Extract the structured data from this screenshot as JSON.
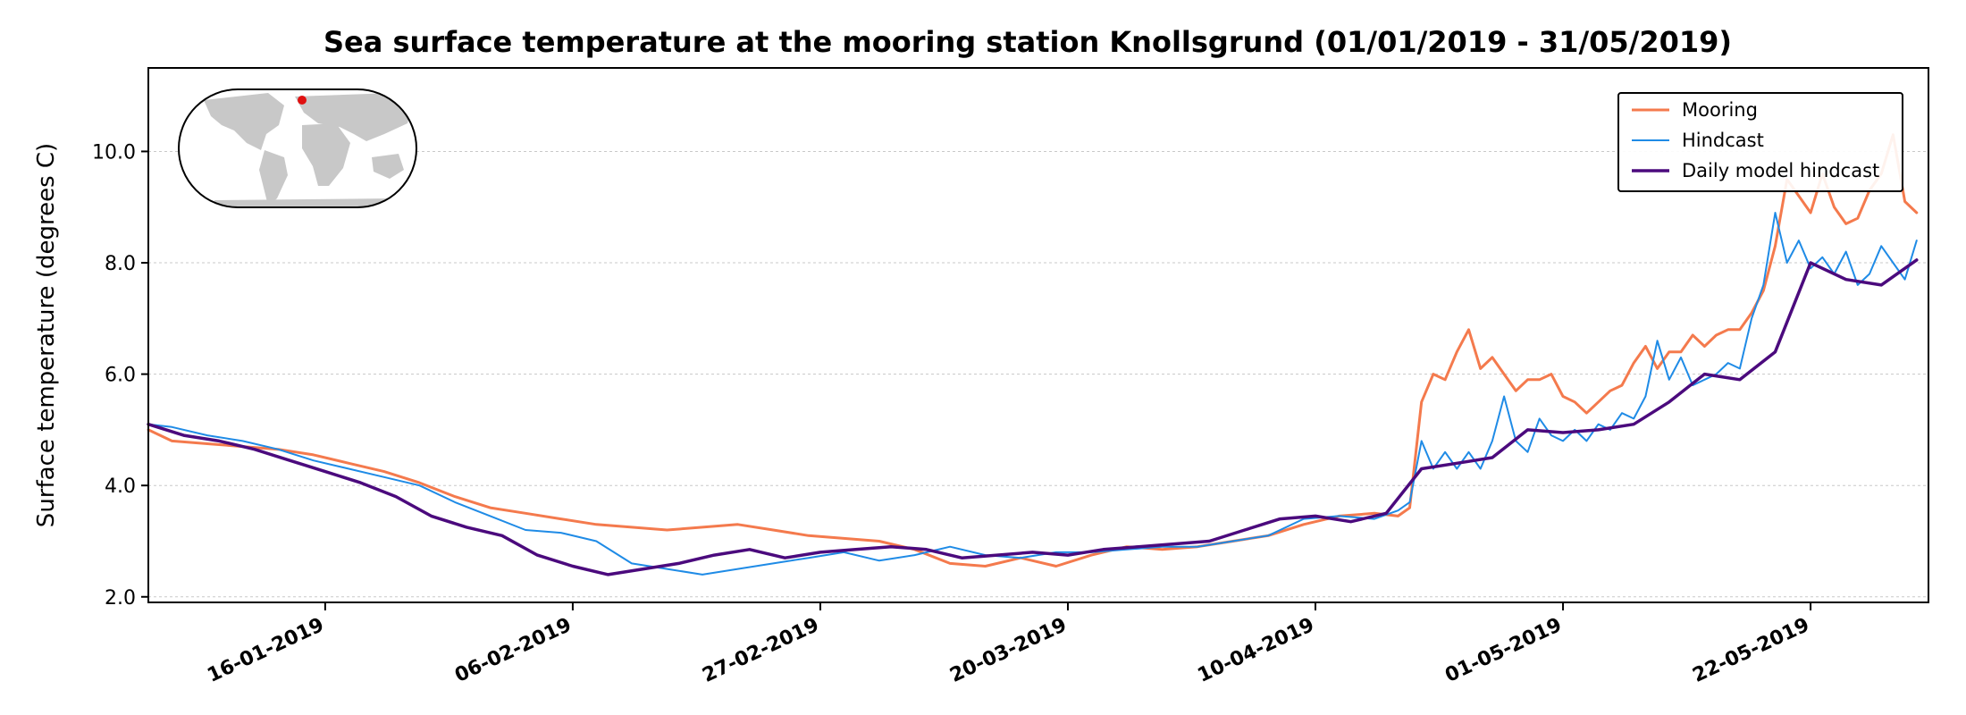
{
  "chart_data": {
    "type": "line",
    "title": "Sea surface temperature at the mooring station Knollsgrund (01/01/2019 - 31/05/2019)",
    "ylabel": "Surface temperature (degrees C)",
    "xlabel": "",
    "xlim": [
      "2019-01-01",
      "2019-06-01"
    ],
    "ylim": [
      1.9,
      11.5
    ],
    "yticks": [
      2.0,
      4.0,
      6.0,
      8.0,
      10.0
    ],
    "ytick_labels": [
      "2.0",
      "4.0",
      "6.0",
      "8.0",
      "10.0"
    ],
    "xticks": [
      "2019-01-16",
      "2019-02-06",
      "2019-02-27",
      "2019-03-20",
      "2019-04-10",
      "2019-05-01",
      "2019-05-22"
    ],
    "xtick_labels": [
      "16-01-2019",
      "06-02-2019",
      "27-02-2019",
      "20-03-2019",
      "10-04-2019",
      "01-05-2019",
      "22-05-2019"
    ],
    "grid": "horizontal dotted",
    "legend_position": "top-right",
    "inset": {
      "type": "world-map",
      "marker_color": "#e01010",
      "marker": "Baltic Sea"
    },
    "series": [
      {
        "name": "Mooring",
        "color": "#f47a4d",
        "width": 3,
        "x": [
          "2019-01-01",
          "2019-01-03",
          "2019-01-06",
          "2019-01-09",
          "2019-01-12",
          "2019-01-15",
          "2019-01-18",
          "2019-01-21",
          "2019-01-24",
          "2019-01-27",
          "2019-01-30",
          "2019-02-02",
          "2019-02-05",
          "2019-02-08",
          "2019-02-11",
          "2019-02-14",
          "2019-02-17",
          "2019-02-20",
          "2019-02-23",
          "2019-02-26",
          "2019-03-01",
          "2019-03-04",
          "2019-03-07",
          "2019-03-10",
          "2019-03-13",
          "2019-03-16",
          "2019-03-19",
          "2019-03-22",
          "2019-03-25",
          "2019-03-28",
          "2019-03-31",
          "2019-04-03",
          "2019-04-06",
          "2019-04-09",
          "2019-04-12",
          "2019-04-15",
          "2019-04-17",
          "2019-04-18",
          "2019-04-19",
          "2019-04-20",
          "2019-04-21",
          "2019-04-22",
          "2019-04-23",
          "2019-04-24",
          "2019-04-25",
          "2019-04-26",
          "2019-04-27",
          "2019-04-28",
          "2019-04-29",
          "2019-04-30",
          "2019-05-01",
          "2019-05-02",
          "2019-05-03",
          "2019-05-04",
          "2019-05-05",
          "2019-05-06",
          "2019-05-07",
          "2019-05-08",
          "2019-05-09",
          "2019-05-10",
          "2019-05-11",
          "2019-05-12",
          "2019-05-13",
          "2019-05-14",
          "2019-05-15",
          "2019-05-16",
          "2019-05-17",
          "2019-05-18",
          "2019-05-19",
          "2019-05-20",
          "2019-05-21",
          "2019-05-22",
          "2019-05-23",
          "2019-05-24",
          "2019-05-25",
          "2019-05-26",
          "2019-05-27",
          "2019-05-28",
          "2019-05-29",
          "2019-05-30",
          "2019-05-31"
        ],
        "y": [
          5.0,
          4.8,
          4.75,
          4.7,
          4.65,
          4.55,
          4.4,
          4.25,
          4.05,
          3.8,
          3.6,
          3.5,
          3.4,
          3.3,
          3.25,
          3.2,
          3.25,
          3.3,
          3.2,
          3.1,
          3.05,
          3.0,
          2.85,
          2.6,
          2.55,
          2.7,
          2.55,
          2.75,
          2.9,
          2.85,
          2.9,
          3.0,
          3.1,
          3.3,
          3.45,
          3.5,
          3.45,
          3.6,
          5.5,
          6.0,
          5.9,
          6.4,
          6.8,
          6.1,
          6.3,
          6.0,
          5.7,
          5.9,
          5.9,
          6.0,
          5.6,
          5.5,
          5.3,
          5.5,
          5.7,
          5.8,
          6.2,
          6.5,
          6.1,
          6.4,
          6.4,
          6.7,
          6.5,
          6.7,
          6.8,
          6.8,
          7.1,
          7.5,
          8.3,
          9.5,
          9.2,
          8.9,
          9.6,
          9.0,
          8.7,
          8.8,
          9.3,
          9.6,
          10.3,
          9.1,
          8.9
        ]
      },
      {
        "name": "Hindcast",
        "color": "#1f8be6",
        "width": 2,
        "x": [
          "2019-01-01",
          "2019-01-03",
          "2019-01-06",
          "2019-01-09",
          "2019-01-12",
          "2019-01-15",
          "2019-01-18",
          "2019-01-21",
          "2019-01-24",
          "2019-01-27",
          "2019-01-30",
          "2019-02-02",
          "2019-02-05",
          "2019-02-08",
          "2019-02-11",
          "2019-02-14",
          "2019-02-17",
          "2019-02-20",
          "2019-02-23",
          "2019-02-26",
          "2019-03-01",
          "2019-03-04",
          "2019-03-07",
          "2019-03-10",
          "2019-03-13",
          "2019-03-16",
          "2019-03-19",
          "2019-03-22",
          "2019-03-25",
          "2019-03-28",
          "2019-03-31",
          "2019-04-03",
          "2019-04-06",
          "2019-04-09",
          "2019-04-12",
          "2019-04-15",
          "2019-04-17",
          "2019-04-18",
          "2019-04-19",
          "2019-04-20",
          "2019-04-21",
          "2019-04-22",
          "2019-04-23",
          "2019-04-24",
          "2019-04-25",
          "2019-04-26",
          "2019-04-27",
          "2019-04-28",
          "2019-04-29",
          "2019-04-30",
          "2019-05-01",
          "2019-05-02",
          "2019-05-03",
          "2019-05-04",
          "2019-05-05",
          "2019-05-06",
          "2019-05-07",
          "2019-05-08",
          "2019-05-09",
          "2019-05-10",
          "2019-05-11",
          "2019-05-12",
          "2019-05-13",
          "2019-05-14",
          "2019-05-15",
          "2019-05-16",
          "2019-05-17",
          "2019-05-18",
          "2019-05-19",
          "2019-05-20",
          "2019-05-21",
          "2019-05-22",
          "2019-05-23",
          "2019-05-24",
          "2019-05-25",
          "2019-05-26",
          "2019-05-27",
          "2019-05-28",
          "2019-05-29",
          "2019-05-30",
          "2019-05-31"
        ],
        "y": [
          5.1,
          5.05,
          4.9,
          4.8,
          4.65,
          4.45,
          4.3,
          4.15,
          4.0,
          3.7,
          3.45,
          3.2,
          3.15,
          3.0,
          2.6,
          2.5,
          2.4,
          2.5,
          2.6,
          2.7,
          2.8,
          2.65,
          2.75,
          2.9,
          2.75,
          2.7,
          2.8,
          2.8,
          2.85,
          2.9,
          2.9,
          3.0,
          3.1,
          3.4,
          3.45,
          3.4,
          3.55,
          3.7,
          4.8,
          4.3,
          4.6,
          4.3,
          4.6,
          4.3,
          4.8,
          5.6,
          4.8,
          4.6,
          5.2,
          4.9,
          4.8,
          5.0,
          4.8,
          5.1,
          5.0,
          5.3,
          5.2,
          5.6,
          6.6,
          5.9,
          6.3,
          5.8,
          5.9,
          6.0,
          6.2,
          6.1,
          7.0,
          7.6,
          8.9,
          8.0,
          8.4,
          7.9,
          8.1,
          7.8,
          8.2,
          7.6,
          7.8,
          8.3,
          8.0,
          7.7,
          8.4
        ]
      },
      {
        "name": "Daily model hindcast",
        "color": "#4b0a7d",
        "width": 3.5,
        "x": [
          "2019-01-01",
          "2019-01-04",
          "2019-01-07",
          "2019-01-10",
          "2019-01-13",
          "2019-01-16",
          "2019-01-19",
          "2019-01-22",
          "2019-01-25",
          "2019-01-28",
          "2019-01-31",
          "2019-02-03",
          "2019-02-06",
          "2019-02-09",
          "2019-02-12",
          "2019-02-15",
          "2019-02-18",
          "2019-02-21",
          "2019-02-24",
          "2019-02-27",
          "2019-03-02",
          "2019-03-05",
          "2019-03-08",
          "2019-03-11",
          "2019-03-14",
          "2019-03-17",
          "2019-03-20",
          "2019-03-23",
          "2019-03-26",
          "2019-03-29",
          "2019-04-01",
          "2019-04-04",
          "2019-04-07",
          "2019-04-10",
          "2019-04-13",
          "2019-04-16",
          "2019-04-19",
          "2019-04-22",
          "2019-04-25",
          "2019-04-28",
          "2019-05-01",
          "2019-05-04",
          "2019-05-07",
          "2019-05-10",
          "2019-05-13",
          "2019-05-16",
          "2019-05-19",
          "2019-05-22",
          "2019-05-25",
          "2019-05-28",
          "2019-05-31"
        ],
        "y": [
          5.1,
          4.9,
          4.8,
          4.65,
          4.45,
          4.25,
          4.05,
          3.8,
          3.45,
          3.25,
          3.1,
          2.75,
          2.55,
          2.4,
          2.5,
          2.6,
          2.75,
          2.85,
          2.7,
          2.8,
          2.85,
          2.9,
          2.85,
          2.7,
          2.75,
          2.8,
          2.75,
          2.85,
          2.9,
          2.95,
          3.0,
          3.2,
          3.4,
          3.45,
          3.35,
          3.5,
          4.3,
          4.4,
          4.5,
          5.0,
          4.95,
          5.0,
          5.1,
          5.5,
          6.0,
          5.9,
          6.4,
          8.0,
          7.7,
          7.6,
          8.05
        ]
      }
    ]
  }
}
